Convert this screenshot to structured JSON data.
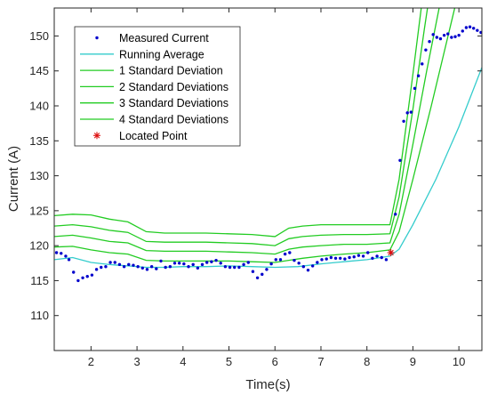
{
  "chart_data": {
    "type": "line",
    "title": "",
    "xlabel": "Time(s)",
    "ylabel": "Current (A)",
    "xlim": [
      1.2,
      10.5
    ],
    "ylim": [
      105,
      154
    ],
    "xticks": [
      2,
      3,
      4,
      5,
      6,
      7,
      8,
      9,
      10
    ],
    "yticks": [
      110,
      115,
      120,
      125,
      130,
      135,
      140,
      145,
      150
    ],
    "legend_position": "top-left",
    "grid": false,
    "series": [
      {
        "name": "Measured Current",
        "kind": "scatter",
        "color": "#0000cc",
        "x": [
          1.25,
          1.35,
          1.45,
          1.52,
          1.62,
          1.72,
          1.82,
          1.92,
          2.02,
          2.12,
          2.22,
          2.32,
          2.42,
          2.52,
          2.62,
          2.72,
          2.82,
          2.92,
          3.02,
          3.12,
          3.22,
          3.32,
          3.42,
          3.52,
          3.62,
          3.72,
          3.82,
          3.92,
          4.02,
          4.12,
          4.22,
          4.32,
          4.42,
          4.52,
          4.62,
          4.72,
          4.82,
          4.92,
          5.02,
          5.12,
          5.22,
          5.32,
          5.42,
          5.52,
          5.62,
          5.72,
          5.82,
          5.92,
          6.02,
          6.12,
          6.22,
          6.32,
          6.42,
          6.52,
          6.62,
          6.72,
          6.82,
          6.92,
          7.02,
          7.12,
          7.22,
          7.32,
          7.42,
          7.52,
          7.62,
          7.72,
          7.82,
          7.92,
          8.02,
          8.12,
          8.22,
          8.32,
          8.42,
          8.52,
          8.62,
          8.72,
          8.8,
          8.88,
          8.96,
          9.04,
          9.12,
          9.2,
          9.28,
          9.36,
          9.44,
          9.52,
          9.6,
          9.68,
          9.76,
          9.84,
          9.92,
          10.0,
          10.08,
          10.16,
          10.24,
          10.32,
          10.4,
          10.48
        ],
        "y": [
          119.0,
          118.9,
          118.5,
          118.0,
          116.2,
          115.0,
          115.4,
          115.6,
          115.8,
          116.6,
          116.9,
          117.0,
          117.6,
          117.6,
          117.3,
          117.0,
          117.3,
          117.2,
          117.0,
          116.8,
          116.6,
          117.0,
          116.7,
          117.8,
          116.9,
          117.0,
          117.5,
          117.5,
          117.4,
          117.0,
          117.3,
          116.8,
          117.3,
          117.6,
          117.7,
          117.9,
          117.5,
          117.0,
          116.9,
          116.9,
          116.9,
          117.3,
          117.6,
          116.3,
          115.4,
          115.9,
          116.6,
          117.4,
          118.0,
          118.0,
          118.8,
          119.0,
          117.9,
          117.5,
          117.0,
          116.5,
          117.1,
          117.6,
          118.0,
          118.1,
          118.3,
          118.2,
          118.2,
          118.1,
          118.3,
          118.4,
          118.6,
          118.5,
          119.0,
          118.2,
          118.5,
          118.3,
          118.0,
          119.0,
          124.5,
          132.2,
          137.8,
          139.0,
          139.1,
          142.5,
          144.3,
          146.0,
          148.0,
          149.2,
          150.2,
          149.8,
          149.6,
          150.1,
          150.3,
          149.8,
          149.9,
          150.1,
          150.7,
          151.2,
          151.3,
          151.1,
          150.8,
          150.5
        ]
      },
      {
        "name": "Running Average",
        "kind": "line",
        "color": "#33cccc",
        "x": [
          1.2,
          1.6,
          2.0,
          2.4,
          2.8,
          3.2,
          3.6,
          4.0,
          4.5,
          5.0,
          5.5,
          6.0,
          6.5,
          7.0,
          7.5,
          8.0,
          8.5,
          8.7,
          9.0,
          9.5,
          10.0,
          10.5
        ],
        "y": [
          118.0,
          118.3,
          117.6,
          117.3,
          117.1,
          116.9,
          116.9,
          117.0,
          117.0,
          117.1,
          117.0,
          116.9,
          117.0,
          117.4,
          117.7,
          118.0,
          118.5,
          119.5,
          123.0,
          129.5,
          137.0,
          145.5
        ]
      },
      {
        "name": "1 Standard Deviation",
        "kind": "line",
        "color": "#22cc22",
        "x": [
          1.2,
          1.6,
          2.0,
          2.4,
          2.8,
          3.2,
          3.6,
          4.0,
          4.5,
          5.0,
          5.5,
          6.0,
          6.3,
          6.6,
          7.0,
          7.5,
          8.0,
          8.5,
          8.7,
          9.0,
          9.4,
          9.8,
          10.2
        ],
        "y": [
          119.8,
          119.9,
          119.4,
          119.0,
          118.8,
          117.9,
          117.8,
          117.8,
          117.8,
          117.8,
          117.7,
          117.6,
          117.9,
          118.2,
          118.5,
          118.8,
          119.0,
          119.4,
          122.0,
          129.5,
          140.0,
          151.0,
          162.0
        ]
      },
      {
        "name": "2 Standard Deviations",
        "kind": "line",
        "color": "#22cc22",
        "x": [
          1.2,
          1.6,
          2.0,
          2.4,
          2.8,
          3.2,
          3.6,
          4.0,
          4.5,
          5.0,
          5.5,
          6.0,
          6.3,
          6.6,
          7.0,
          7.5,
          8.0,
          8.5,
          8.7,
          9.0,
          9.3,
          9.6,
          9.9
        ],
        "y": [
          121.3,
          121.5,
          121.1,
          120.6,
          120.4,
          119.3,
          119.2,
          119.2,
          119.2,
          119.1,
          119.0,
          118.8,
          119.5,
          119.8,
          120.0,
          120.2,
          120.2,
          120.4,
          124.5,
          134.5,
          145.0,
          155.0,
          162.0
        ]
      },
      {
        "name": "3 Standard Deviations",
        "kind": "line",
        "color": "#22cc22",
        "x": [
          1.2,
          1.6,
          2.0,
          2.4,
          2.8,
          3.2,
          3.6,
          4.0,
          4.5,
          5.0,
          5.5,
          6.0,
          6.3,
          6.6,
          7.0,
          7.5,
          8.0,
          8.5,
          8.7,
          9.0,
          9.25,
          9.5
        ],
        "y": [
          122.8,
          123.0,
          122.7,
          122.2,
          121.9,
          120.6,
          120.5,
          120.5,
          120.5,
          120.4,
          120.3,
          120.0,
          121.0,
          121.3,
          121.5,
          121.6,
          121.6,
          121.7,
          127.0,
          139.5,
          151.0,
          162.0
        ]
      },
      {
        "name": "4 Standard Deviations",
        "kind": "line",
        "color": "#22cc22",
        "x": [
          1.2,
          1.6,
          2.0,
          2.4,
          2.8,
          3.2,
          3.6,
          4.0,
          4.5,
          5.0,
          5.5,
          6.0,
          6.3,
          6.6,
          7.0,
          7.5,
          8.0,
          8.5,
          8.7,
          9.0,
          9.2,
          9.4
        ],
        "y": [
          124.3,
          124.5,
          124.4,
          123.8,
          123.4,
          122.0,
          121.8,
          121.8,
          121.8,
          121.7,
          121.6,
          121.3,
          122.5,
          122.8,
          123.0,
          123.0,
          123.0,
          123.0,
          129.5,
          144.5,
          155.0,
          164.0
        ]
      },
      {
        "name": "Located Point",
        "kind": "marker",
        "color": "#dd1111",
        "x": [
          8.52
        ],
        "y": [
          119.0
        ]
      }
    ]
  }
}
